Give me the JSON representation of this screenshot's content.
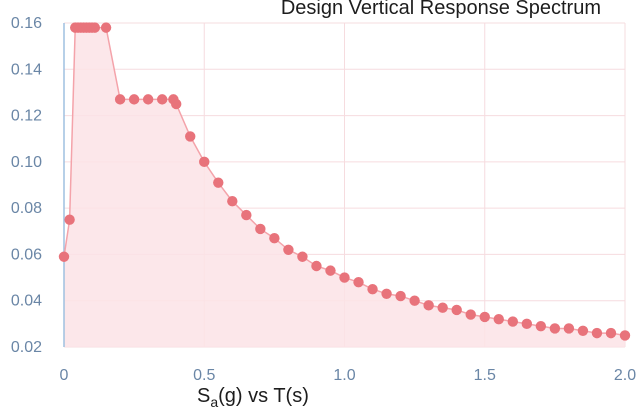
{
  "chart_data": {
    "type": "area",
    "title": "Design Vertical Response Spectrum",
    "xlabel": "S_a(g) vs T(s)",
    "xlabel_parts": {
      "s": "S",
      "sub": "a",
      "rest": "(g) vs T(s)"
    },
    "ylabel": "",
    "xlim": [
      0,
      2.0
    ],
    "ylim": [
      0.02,
      0.16
    ],
    "x_ticks": [
      {
        "value": 0,
        "label": "0"
      },
      {
        "value": 0.5,
        "label": "0.5"
      },
      {
        "value": 1.0,
        "label": "1.0"
      },
      {
        "value": 1.5,
        "label": "1.5"
      },
      {
        "value": 2.0,
        "label": "2.0"
      }
    ],
    "y_ticks": [
      {
        "value": 0.02,
        "label": "0.02"
      },
      {
        "value": 0.04,
        "label": "0.04"
      },
      {
        "value": 0.06,
        "label": "0.06"
      },
      {
        "value": 0.08,
        "label": "0.08"
      },
      {
        "value": 0.1,
        "label": "0.10"
      },
      {
        "value": 0.12,
        "label": "0.12"
      },
      {
        "value": 0.14,
        "label": "0.14"
      },
      {
        "value": 0.16,
        "label": "0.16"
      }
    ],
    "grid": true,
    "legend": "none",
    "colors": {
      "line": "#f4a3aa",
      "marker": "#e8737b",
      "fill": "#fbe3e6",
      "grid": "#f6dcdf",
      "axis": "#9fc0e0",
      "tick_text": "#6a86a6"
    },
    "series": [
      {
        "x": [
          0,
          0.02,
          0.04,
          0.05,
          0.06,
          0.07,
          0.08,
          0.09,
          0.1,
          0.11,
          0.15,
          0.2,
          0.25,
          0.3,
          0.35,
          0.39,
          0.4,
          0.45,
          0.5,
          0.55,
          0.6,
          0.65,
          0.7,
          0.75,
          0.8,
          0.85,
          0.9,
          0.95,
          1.0,
          1.05,
          1.1,
          1.15,
          1.2,
          1.25,
          1.3,
          1.35,
          1.4,
          1.45,
          1.5,
          1.55,
          1.6,
          1.65,
          1.7,
          1.75,
          1.8,
          1.85,
          1.9,
          1.95,
          2.0
        ],
        "y": [
          0.059,
          0.075,
          0.158,
          0.158,
          0.158,
          0.158,
          0.158,
          0.158,
          0.158,
          0.158,
          0.158,
          0.127,
          0.127,
          0.127,
          0.127,
          0.127,
          0.125,
          0.111,
          0.1,
          0.091,
          0.083,
          0.077,
          0.071,
          0.067,
          0.062,
          0.059,
          0.055,
          0.053,
          0.05,
          0.048,
          0.045,
          0.043,
          0.042,
          0.04,
          0.038,
          0.037,
          0.036,
          0.034,
          0.033,
          0.032,
          0.031,
          0.03,
          0.029,
          0.028,
          0.028,
          0.027,
          0.026,
          0.026,
          0.025
        ]
      }
    ]
  }
}
